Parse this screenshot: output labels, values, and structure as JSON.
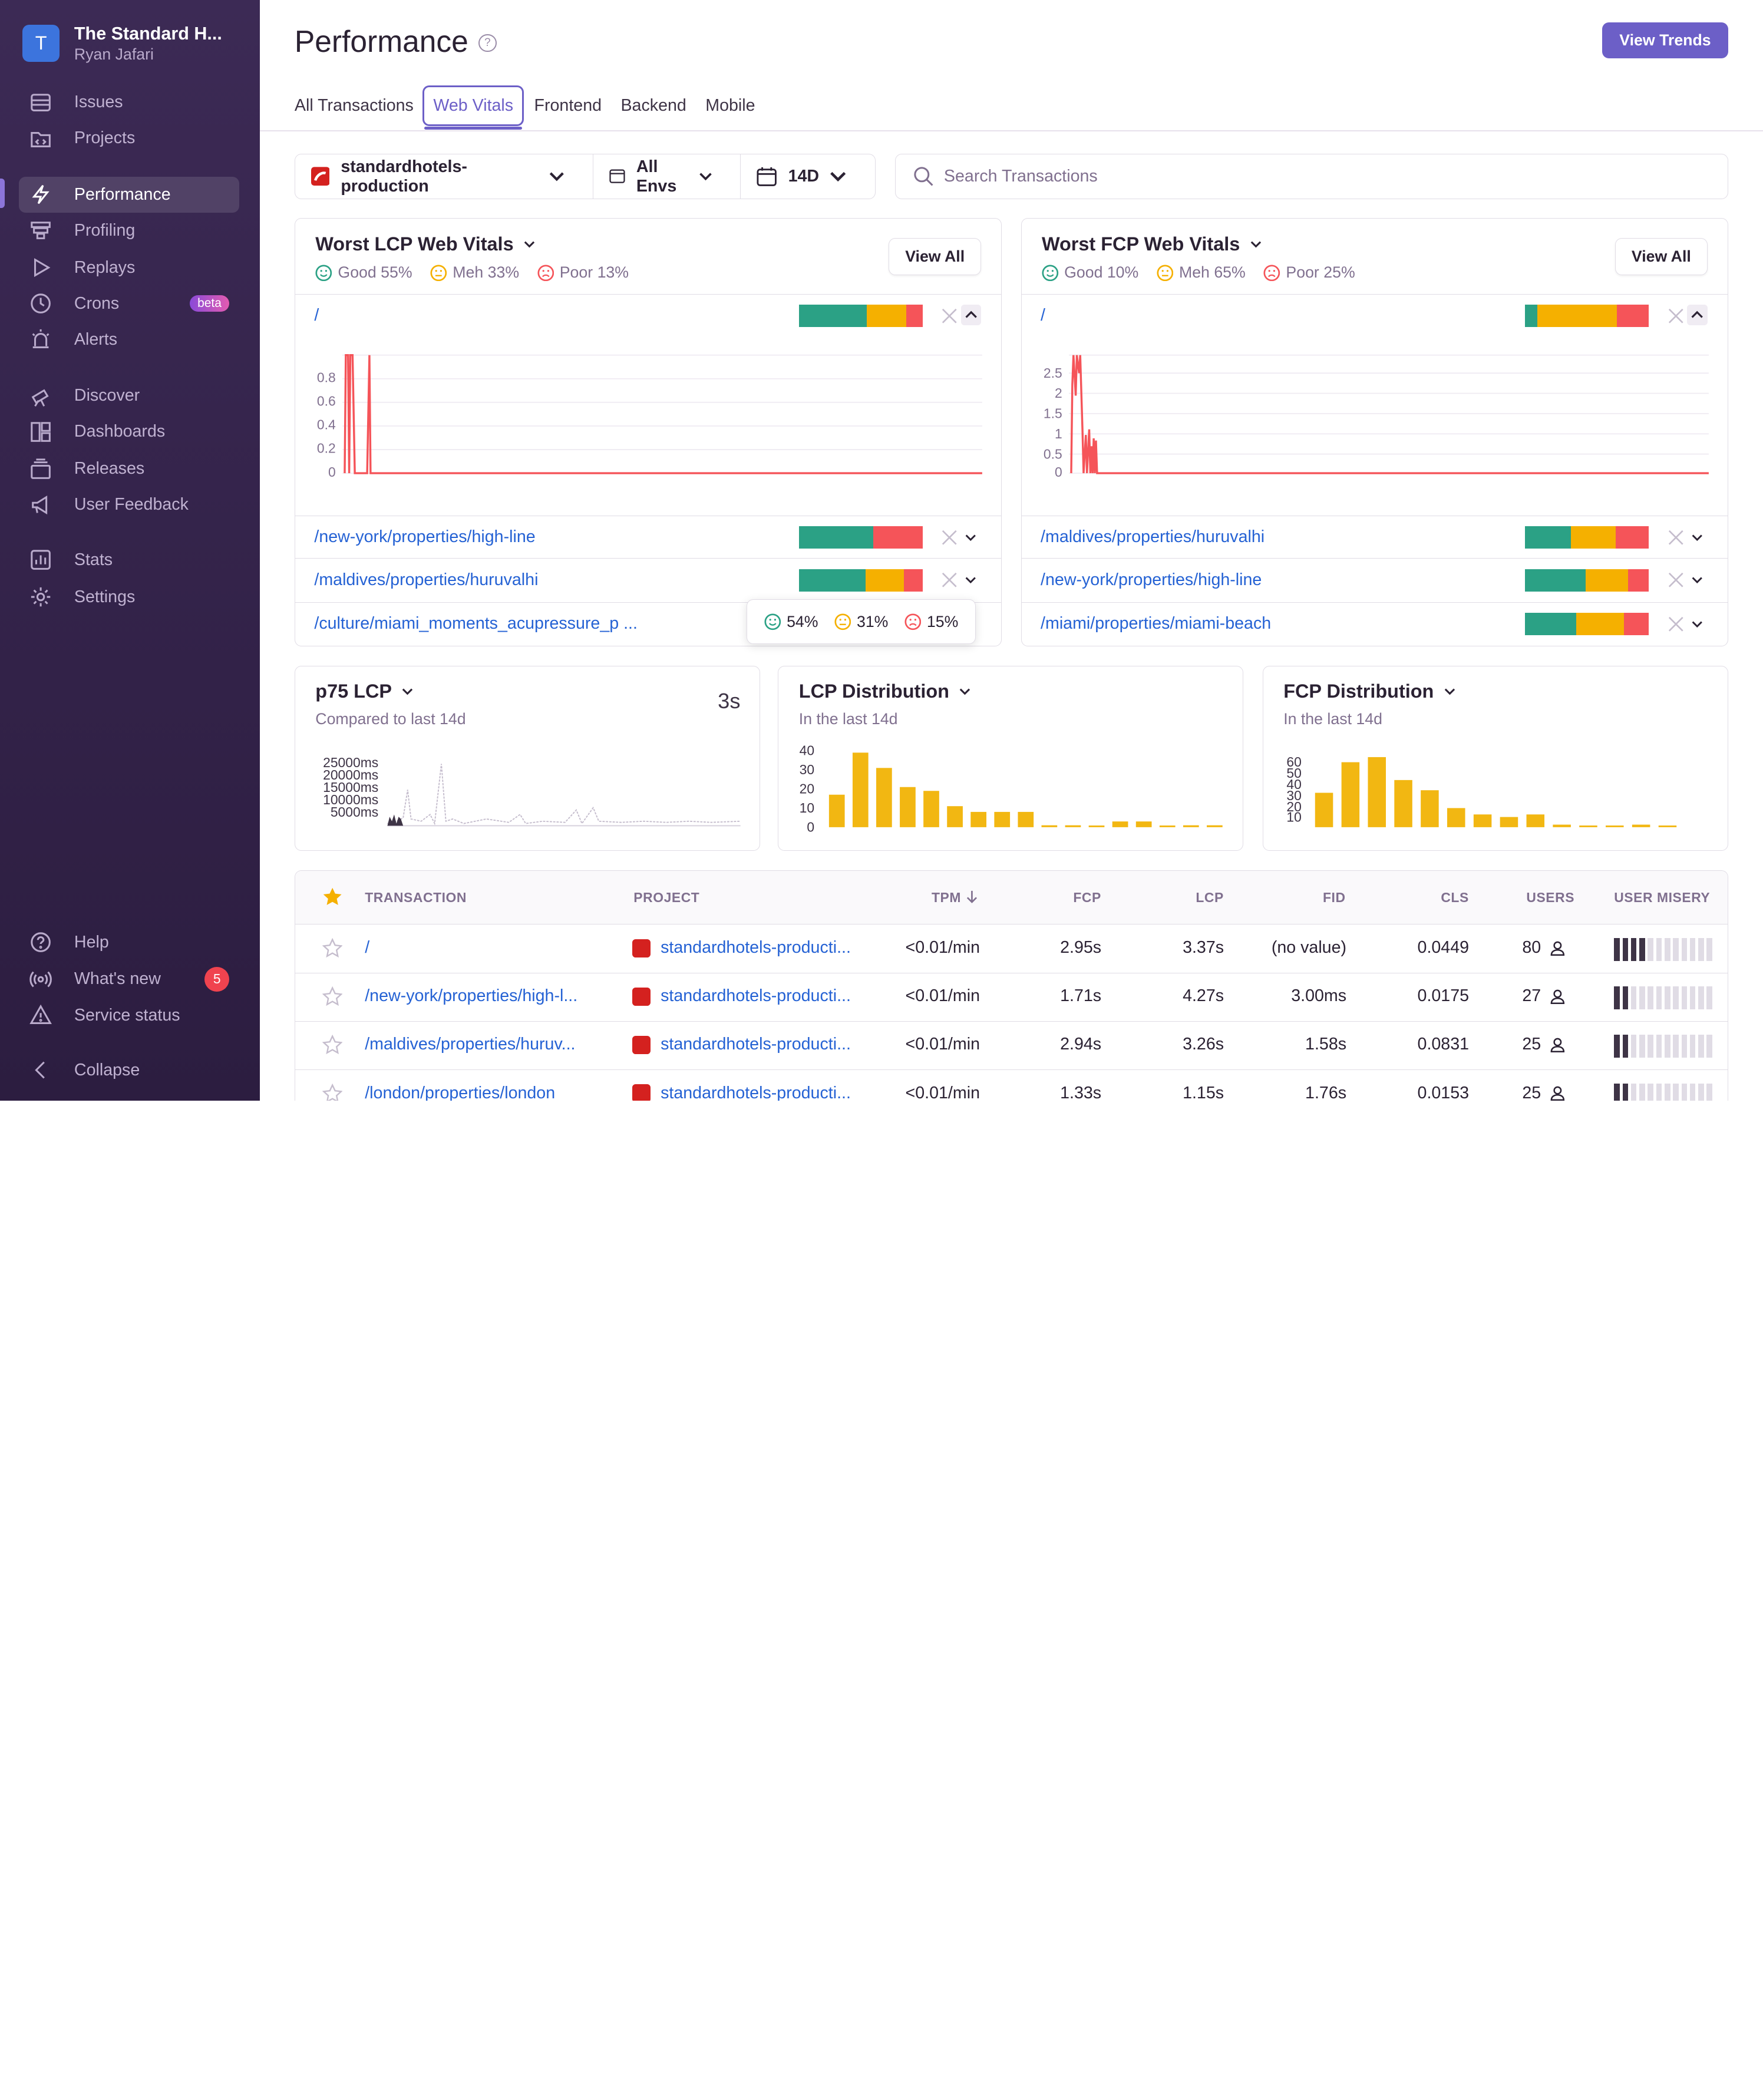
{
  "org": {
    "initial": "T",
    "name": "The Standard H...",
    "user": "Ryan Jafari"
  },
  "nav": {
    "issues": "Issues",
    "projects": "Projects",
    "performance": "Performance",
    "profiling": "Profiling",
    "replays": "Replays",
    "crons": "Crons",
    "crons_badge": "beta",
    "alerts": "Alerts",
    "discover": "Discover",
    "dashboards": "Dashboards",
    "releases": "Releases",
    "user_feedback": "User Feedback",
    "stats": "Stats",
    "settings": "Settings",
    "help": "Help",
    "whats_new": "What's new",
    "whats_new_count": "5",
    "service_status": "Service status",
    "collapse": "Collapse"
  },
  "header": {
    "title": "Performance",
    "help": "?",
    "view_trends": "View Trends"
  },
  "tabs": [
    "All Transactions",
    "Web Vitals",
    "Frontend",
    "Backend",
    "Mobile"
  ],
  "filters": {
    "project": "standardhotels-production",
    "env": "All Envs",
    "period": "14D",
    "search_placeholder": "Search Transactions"
  },
  "lcp_panel": {
    "title": "Worst LCP Web Vitals",
    "good": "Good 55%",
    "meh": "Meh 33%",
    "poor": "Poor 13%",
    "view_all": "View All",
    "rows": [
      {
        "path": "/",
        "good": 55,
        "meh": 32,
        "poor": 13
      },
      {
        "path": "/new-york/properties/high-line",
        "good": 60,
        "meh": 0,
        "poor": 40
      },
      {
        "path": "/maldives/properties/huruvalhi",
        "good": 54,
        "meh": 31,
        "poor": 15
      },
      {
        "path": "/culture/miami_moments_acupressure_p ..."
      }
    ],
    "chart_yticks": [
      "0.8",
      "0.6",
      "0.4",
      "0.2",
      "0"
    ]
  },
  "fcp_panel": {
    "title": "Worst FCP Web Vitals",
    "good": "Good 10%",
    "meh": "Meh 65%",
    "poor": "Poor 25%",
    "view_all": "View All",
    "rows": [
      {
        "path": "/",
        "good": 10,
        "meh": 64,
        "poor": 26
      },
      {
        "path": "/maldives/properties/huruvalhi",
        "good": 37,
        "meh": 36,
        "poor": 27
      },
      {
        "path": "/new-york/properties/high-line",
        "good": 49,
        "meh": 34,
        "poor": 17
      },
      {
        "path": "/miami/properties/miami-beach",
        "good": 41,
        "meh": 39,
        "poor": 20
      }
    ],
    "chart_yticks": [
      "2.5",
      "2",
      "1.5",
      "1",
      "0.5",
      "0"
    ]
  },
  "tooltip": {
    "good": "54%",
    "meh": "31%",
    "poor": "15%"
  },
  "p75": {
    "title": "p75 LCP",
    "subtitle": "Compared to last 14d",
    "value": "3s",
    "yticks": [
      "25000ms",
      "20000ms",
      "15000ms",
      "10000ms",
      "5000ms"
    ]
  },
  "lcp_dist": {
    "title": "LCP Distribution",
    "subtitle": "In the last 14d",
    "yticks": [
      "40",
      "30",
      "20",
      "10",
      "0"
    ]
  },
  "fcp_dist": {
    "title": "FCP Distribution",
    "subtitle": "In the last 14d",
    "yticks": [
      "60",
      "50",
      "40",
      "30",
      "20",
      "10"
    ]
  },
  "chart_data": [
    {
      "type": "bar",
      "title": "LCP Distribution",
      "ylim": [
        0,
        40
      ],
      "values": [
        17,
        39,
        31,
        21,
        19,
        11,
        8,
        8,
        8,
        1,
        1,
        0,
        3,
        3,
        0,
        1,
        1
      ]
    },
    {
      "type": "bar",
      "title": "FCP Distribution",
      "ylim": [
        0,
        60
      ],
      "values": [
        27,
        51,
        55,
        37,
        29,
        15,
        10,
        8,
        10,
        2,
        1,
        1,
        2,
        1
      ]
    }
  ],
  "table": {
    "headers": {
      "transaction": "TRANSACTION",
      "project": "PROJECT",
      "tpm": "TPM",
      "fcp": "FCP",
      "lcp": "LCP",
      "fid": "FID",
      "cls": "CLS",
      "users": "USERS",
      "misery": "USER MISERY"
    },
    "rows": [
      {
        "transaction": "/",
        "project": "standardhotels-producti...",
        "tpm": "<0.01/min",
        "fcp": "2.95s",
        "lcp": "3.37s",
        "fid": "(no value)",
        "cls": "0.0449",
        "users": "80",
        "misery": 4
      },
      {
        "transaction": "/new-york/properties/high-l...",
        "project": "standardhotels-producti...",
        "tpm": "<0.01/min",
        "fcp": "1.71s",
        "lcp": "4.27s",
        "fid": "3.00ms",
        "cls": "0.0175",
        "users": "27",
        "misery": 2
      },
      {
        "transaction": "/maldives/properties/huruv...",
        "project": "standardhotels-producti...",
        "tpm": "<0.01/min",
        "fcp": "2.94s",
        "lcp": "3.26s",
        "fid": "1.58s",
        "cls": "0.0831",
        "users": "25",
        "misery": 2
      },
      {
        "transaction": "/london/properties/london",
        "project": "standardhotels-producti...",
        "tpm": "<0.01/min",
        "fcp": "1.33s",
        "lcp": "1.15s",
        "fid": "1.76s",
        "cls": "0.0153",
        "users": "25",
        "misery": 2
      }
    ]
  },
  "colors": {
    "good": "#2ba185",
    "meh": "#f5b000",
    "poor": "#f55459",
    "accent": "#6c5fc7",
    "bar": "#f2b712",
    "misery_on": "#3e3446",
    "misery_off": "#e0dce5"
  }
}
